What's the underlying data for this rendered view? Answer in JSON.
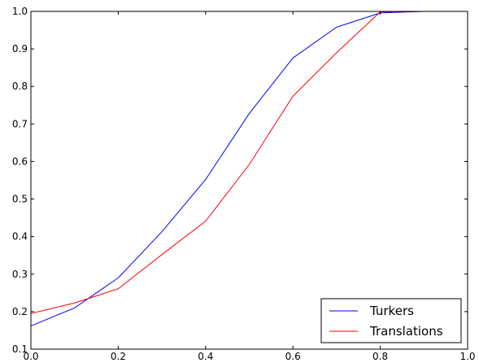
{
  "chart_data": {
    "type": "line",
    "title": "",
    "xlabel": "",
    "ylabel": "",
    "xlim": [
      0.0,
      1.0
    ],
    "ylim": [
      0.1,
      1.0
    ],
    "x_ticks": [
      "0.0",
      "0.2",
      "0.4",
      "0.6",
      "0.8",
      "1.0"
    ],
    "y_ticks": [
      "0.1",
      "0.2",
      "0.3",
      "0.4",
      "0.5",
      "0.6",
      "0.7",
      "0.8",
      "0.9",
      "1.0"
    ],
    "grid": false,
    "legend_position": "bottom-right",
    "series": [
      {
        "name": "Turkers",
        "color": "#0000ff",
        "x": [
          0.0,
          0.1,
          0.2,
          0.3,
          0.4,
          0.5,
          0.6,
          0.7,
          0.8,
          0.9,
          1.0
        ],
        "y": [
          0.162,
          0.21,
          0.29,
          0.413,
          0.552,
          0.728,
          0.876,
          0.958,
          0.996,
          1.0,
          1.0
        ]
      },
      {
        "name": "Translations",
        "color": "#ff0000",
        "x": [
          0.0,
          0.1,
          0.2,
          0.3,
          0.4,
          0.5,
          0.6,
          0.7,
          0.8,
          0.9,
          1.0
        ],
        "y": [
          0.195,
          0.223,
          0.261,
          0.352,
          0.441,
          0.592,
          0.774,
          0.89,
          0.999,
          1.0,
          1.0
        ]
      }
    ]
  }
}
